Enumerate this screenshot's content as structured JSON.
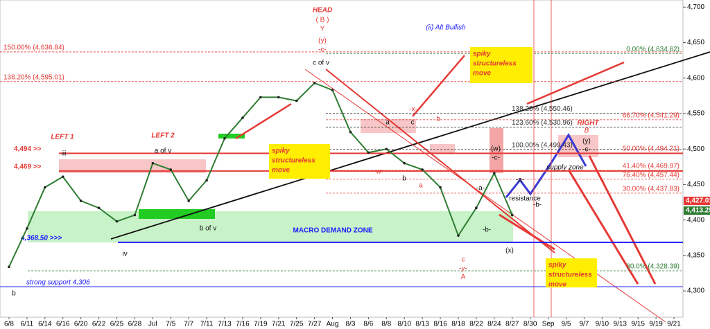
{
  "chart_data": {
    "type": "line",
    "categories": [
      "6/8",
      "6/11",
      "6/14",
      "6/16",
      "6/20",
      "6/22",
      "6/25",
      "6/28",
      "Jul",
      "7/5",
      "7/7",
      "7/11",
      "7/13",
      "7/16",
      "7/19",
      "7/21",
      "7/25",
      "7/27",
      "Aug",
      "8/3",
      "8/6",
      "8/8",
      "8/10",
      "8/13",
      "8/16",
      "8/18",
      "8/22",
      "8/24",
      "8/27",
      "8/30",
      "Sep",
      "9/5",
      "9/7",
      "9/10",
      "9/13",
      "9/15",
      "9/19",
      "9/21"
    ],
    "values": [
      4334,
      4388,
      4446,
      4461,
      4427,
      4417,
      4398,
      4407,
      4480,
      4471,
      4427,
      4456,
      4515,
      4544,
      4573,
      4573,
      4568,
      4593,
      4583,
      4524,
      4495,
      4500,
      4480,
      4471,
      4446,
      4378,
      4417,
      4466,
      4407,
      null,
      null,
      null,
      null,
      null,
      null,
      null,
      null,
      null
    ],
    "color": "#2e7d32",
    "ylim": [
      4263,
      4710
    ],
    "yticks": [
      {
        "value": 4300,
        "label": "4,300"
      },
      {
        "value": 4350,
        "label": "4,350"
      },
      {
        "value": 4400,
        "label": "4,400"
      },
      {
        "value": 4450,
        "label": "4,450"
      },
      {
        "value": 4500,
        "label": "4,500"
      },
      {
        "value": 4550,
        "label": "4,550"
      },
      {
        "value": 4600,
        "label": "4,600"
      },
      {
        "value": 4650,
        "label": "4,650"
      },
      {
        "value": 4700,
        "label": "4,700"
      }
    ],
    "levels": [
      {
        "value": 4636.84,
        "label": "150.00% (4,636.84)",
        "color": "#e53935"
      },
      {
        "value": 4595.01,
        "label": "138.20% (4,595.01)",
        "color": "#e53935"
      },
      {
        "value": 4634.62,
        "label": "0.00% (4,634.62)",
        "color": "#2e7d32"
      },
      {
        "value": 4550.46,
        "label": "138.20% (4,550.46)",
        "color": "#333333"
      },
      {
        "value": 4541.29,
        "label": "66.70% (4,541.29)",
        "color": "#e53935"
      },
      {
        "value": 4530.96,
        "label": "123.60% (4,530.96)",
        "color": "#333333"
      },
      {
        "value": 4499.43,
        "label": "100.00% (4,499.43)",
        "color": "#333333"
      },
      {
        "value": 4494.21,
        "label": "50.00% (4,494.21)",
        "color": "#e53935"
      },
      {
        "value": 4469.97,
        "label": "41.40% (4,469.97)",
        "color": "#e53935"
      },
      {
        "value": 4457.44,
        "label": "76.40% (4,457.44)",
        "color": "#e53935"
      },
      {
        "value": 4437.83,
        "label": "30.00% (4,437.83)",
        "color": "#e53935"
      },
      {
        "value": 4328.39,
        "label": "30.0% (4,328.39)",
        "color": "#2e7d32"
      },
      {
        "value": 4494,
        "label": "4,494 >>",
        "color": "#e53935"
      },
      {
        "value": 4469,
        "label": "4,469 >>",
        "color": "#e53935"
      },
      {
        "value": 4368.5,
        "label": "4,368.50 >>>",
        "color": "#1a1aff"
      },
      {
        "value": 4306,
        "label": "strong support 4,306",
        "color": "#1a1aff"
      }
    ],
    "price_tags": [
      {
        "value": 4427.01,
        "label": "4,427.01",
        "color": "#e53935"
      },
      {
        "value": 4413.25,
        "label": "4,413.25",
        "color": "#2e7d32"
      }
    ],
    "annotations": [
      "HEAD",
      "( B )",
      "Y",
      "(y)",
      "-c-",
      "c of v",
      "(ii) Alt Bullish",
      "LEFT 1",
      "LEFT 2",
      "iii",
      "a of v",
      "b of v",
      "iv",
      "RIGHT",
      "B",
      "(y)",
      "-c-",
      "MACRO DEMAND ZONE",
      "supply zone",
      "resistance",
      "(w)",
      "-c-",
      "-x-",
      "a",
      "b",
      "c",
      "-w-",
      "b",
      "a",
      "c",
      "-y-",
      "A",
      "-a-",
      "-b-",
      "(x)",
      "-a-",
      "-b-",
      "b"
    ],
    "callouts": [
      [
        "spiky",
        "structureless",
        "move"
      ],
      [
        "spiky",
        "structureless",
        "move"
      ],
      [
        "spiky",
        "structureless",
        "move"
      ]
    ]
  }
}
